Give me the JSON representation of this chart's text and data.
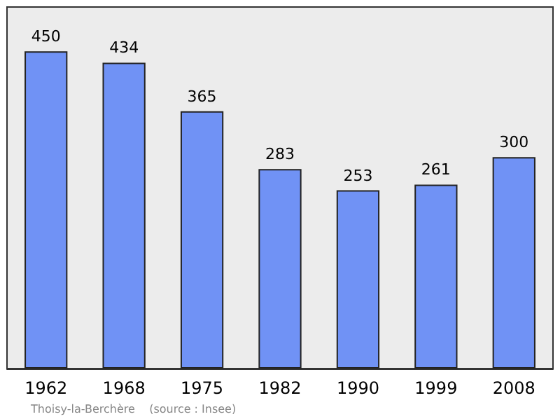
{
  "chart_data": {
    "type": "bar",
    "categories": [
      "1962",
      "1968",
      "1975",
      "1982",
      "1990",
      "1999",
      "2008"
    ],
    "values": [
      450,
      434,
      365,
      283,
      253,
      261,
      300
    ],
    "color": "#7092f5",
    "data_labels": true,
    "grid": false,
    "annotations": [
      "Thoisy-la-Berchère    (source : Insee)"
    ]
  }
}
